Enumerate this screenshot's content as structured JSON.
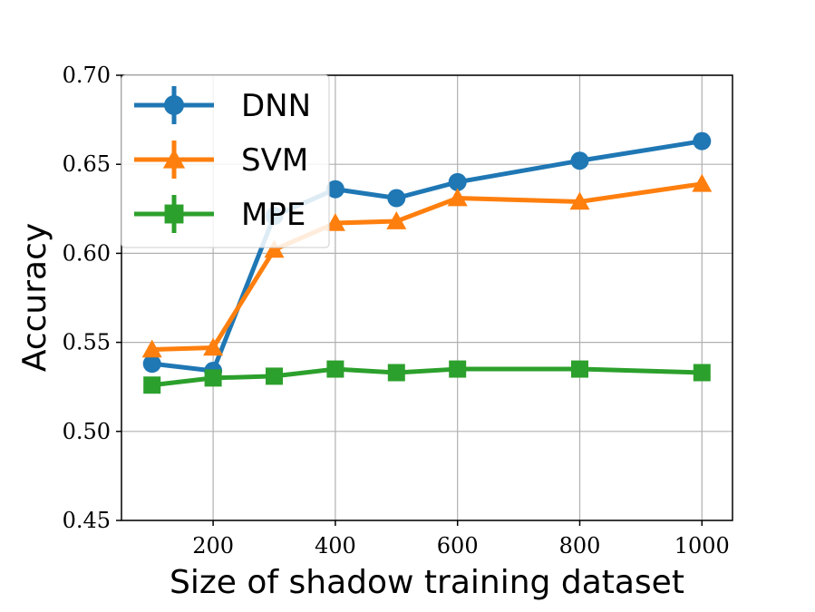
{
  "chart_data": {
    "type": "line",
    "title": "",
    "xlabel": "Size of shadow training dataset",
    "ylabel": "Accuracy",
    "xlim": [
      50,
      1050
    ],
    "ylim": [
      0.45,
      0.7
    ],
    "xticks": [
      200,
      400,
      600,
      800,
      1000
    ],
    "xtick_labels": [
      "200",
      "400",
      "600",
      "800",
      "1000"
    ],
    "yticks": [
      0.45,
      0.5,
      0.55,
      0.6,
      0.65,
      0.7
    ],
    "ytick_labels": [
      "0.45",
      "0.50",
      "0.55",
      "0.60",
      "0.65",
      "0.70"
    ],
    "grid": true,
    "legend_position": "upper-left",
    "x": [
      100,
      200,
      300,
      400,
      500,
      600,
      800,
      1000
    ],
    "series": [
      {
        "name": "DNN",
        "color": "#1f77b4",
        "marker": "circle",
        "values": [
          0.538,
          0.534,
          0.621,
          0.636,
          0.631,
          0.64,
          0.652,
          0.663
        ]
      },
      {
        "name": "SVM",
        "color": "#ff7f0e",
        "marker": "triangle",
        "values": [
          0.546,
          0.547,
          0.602,
          0.617,
          0.618,
          0.631,
          0.629,
          0.639
        ]
      },
      {
        "name": "MPE",
        "color": "#2ca02c",
        "marker": "square",
        "values": [
          0.526,
          0.53,
          0.531,
          0.535,
          0.533,
          0.535,
          0.535,
          0.533
        ]
      }
    ]
  }
}
